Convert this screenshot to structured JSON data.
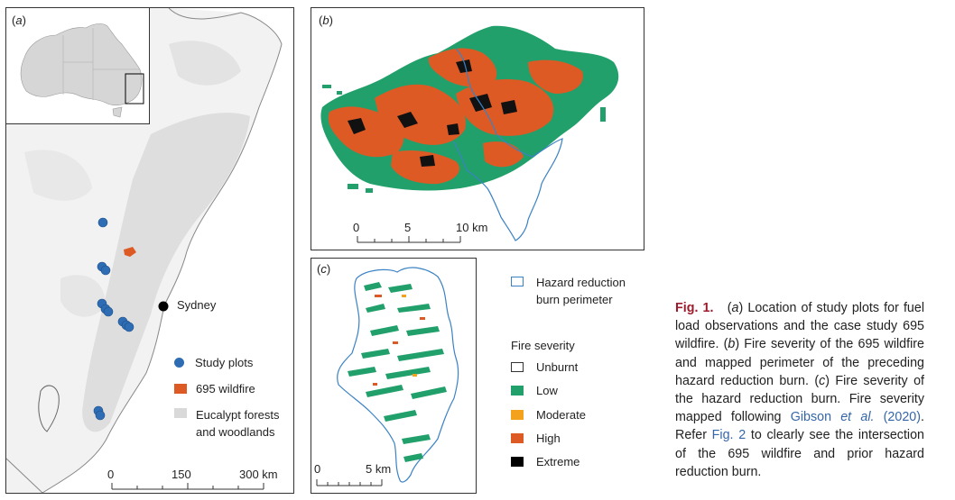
{
  "panel_a": {
    "label": "a",
    "city": "Sydney",
    "scale": {
      "ticks": [
        "0",
        "150",
        "300 km"
      ]
    },
    "legend": {
      "study_plots": "Study plots",
      "wildfire": "695 wildfire",
      "eucalypt_line1": "Eucalypt forests",
      "eucalypt_line2": "and woodlands"
    }
  },
  "panel_b": {
    "label": "b",
    "scale": {
      "ticks": [
        "0",
        "5",
        "10 km"
      ]
    }
  },
  "panel_c": {
    "label": "c",
    "scale": {
      "ticks": [
        "0",
        "5 km"
      ]
    }
  },
  "legend": {
    "perimeter_line1": "Hazard reduction",
    "perimeter_line2": "burn perimeter",
    "severity_title": "Fire severity",
    "classes": [
      {
        "label": "Unburnt",
        "color": "#ffffff"
      },
      {
        "label": "Low",
        "color": "#22a06b"
      },
      {
        "label": "Moderate",
        "color": "#f2a31b"
      },
      {
        "label": "High",
        "color": "#dd5a24"
      },
      {
        "label": "Extreme",
        "color": "#000000"
      }
    ]
  },
  "colors": {
    "perimeter": "#3b82c4",
    "study_plot": "#2e6db4",
    "figure_label": "#9b1c2c",
    "link": "#3566a8",
    "eucalypt": "#e0e0e0"
  },
  "caption": {
    "fig_label": "Fig. 1.",
    "text_1": "(",
    "a": "a",
    "text_2": ") Location of study plots for fuel load observations and the case study 695 wildfire. (",
    "b": "b",
    "text_3": ") Fire severity of the 695 wildfire and mapped perimeter of the preceding hazard reduction burn. (",
    "c": "c",
    "text_4": ") Fire severity of the hazard reduction burn. Fire severity mapped following ",
    "ref_author": "Gibson ",
    "ref_etal": "et al.",
    "ref_year": " (2020)",
    "text_5": ". Refer ",
    "fig2": "Fig. 2",
    "text_6": " to clearly see the intersection of the 695 wildfire and prior hazard reduction burn."
  }
}
